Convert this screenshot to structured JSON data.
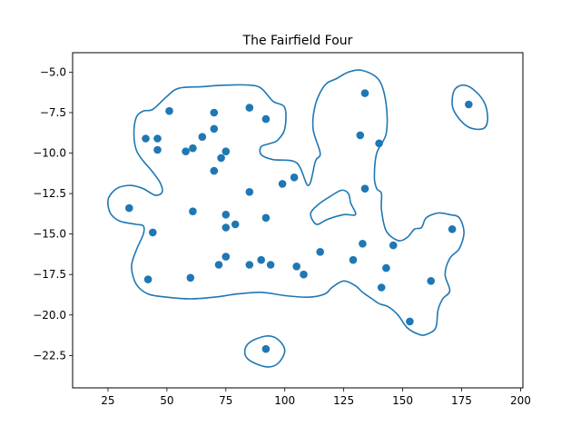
{
  "chart_data": {
    "type": "scatter",
    "title": "The Fairfield Four",
    "xlabel": "",
    "ylabel": "",
    "xlim": [
      10,
      201
    ],
    "ylim": [
      -24.5,
      -3.8
    ],
    "xticks": [
      25,
      50,
      75,
      100,
      125,
      150,
      175,
      200
    ],
    "yticks": [
      -5.0,
      -7.5,
      -10.0,
      -12.5,
      -15.0,
      -17.5,
      -20.0,
      -22.5
    ],
    "xtick_labels": [
      "25",
      "50",
      "75",
      "100",
      "125",
      "150",
      "175",
      "200"
    ],
    "ytick_labels": [
      "−5.0",
      "−7.5",
      "−10.0",
      "−12.5",
      "−15.0",
      "−17.5",
      "−20.0",
      "−22.5"
    ],
    "grid": false,
    "point_color": "#1f77b4",
    "line_color": "#1f77b4",
    "points": [
      [
        51,
        -7.4
      ],
      [
        41,
        -9.1
      ],
      [
        46,
        -9.1
      ],
      [
        46,
        -9.8
      ],
      [
        70,
        -7.5
      ],
      [
        70,
        -8.5
      ],
      [
        85,
        -7.2
      ],
      [
        92,
        -7.9
      ],
      [
        65,
        -9.0
      ],
      [
        61,
        -9.7
      ],
      [
        58,
        -9.9
      ],
      [
        75,
        -9.9
      ],
      [
        73,
        -10.3
      ],
      [
        70,
        -11.1
      ],
      [
        85,
        -12.4
      ],
      [
        99,
        -11.9
      ],
      [
        104,
        -11.5
      ],
      [
        132,
        -8.9
      ],
      [
        140,
        -9.4
      ],
      [
        134,
        -6.3
      ],
      [
        134,
        -12.2
      ],
      [
        178,
        -7.0
      ],
      [
        34,
        -13.4
      ],
      [
        61,
        -13.6
      ],
      [
        75,
        -13.8
      ],
      [
        79,
        -14.4
      ],
      [
        75,
        -14.6
      ],
      [
        92,
        -14.0
      ],
      [
        44,
        -14.9
      ],
      [
        75,
        -16.4
      ],
      [
        72,
        -16.9
      ],
      [
        85,
        -16.9
      ],
      [
        90,
        -16.6
      ],
      [
        94,
        -16.9
      ],
      [
        105,
        -17.0
      ],
      [
        108,
        -17.5
      ],
      [
        115,
        -16.1
      ],
      [
        133,
        -15.6
      ],
      [
        129,
        -16.6
      ],
      [
        146,
        -15.7
      ],
      [
        143,
        -17.1
      ],
      [
        141,
        -18.3
      ],
      [
        162,
        -17.9
      ],
      [
        171,
        -14.7
      ],
      [
        153,
        -20.4
      ],
      [
        60,
        -17.7
      ],
      [
        42,
        -17.8
      ],
      [
        92,
        -22.1
      ]
    ],
    "contours": [
      [
        [
          110,
          -12.0
        ],
        [
          113,
          -10.5
        ],
        [
          115,
          -10.0
        ],
        [
          112,
          -8.5
        ],
        [
          113,
          -7.0
        ],
        [
          117,
          -5.8
        ],
        [
          122,
          -5.4
        ],
        [
          127,
          -5.0
        ],
        [
          133,
          -4.9
        ],
        [
          140,
          -5.5
        ],
        [
          143,
          -7.0
        ],
        [
          143,
          -8.8
        ],
        [
          139,
          -10.0
        ],
        [
          138,
          -11.5
        ],
        [
          139,
          -12.2
        ],
        [
          141,
          -12.5
        ],
        [
          141,
          -13.5
        ],
        [
          143,
          -14.8
        ],
        [
          148,
          -15.4
        ],
        [
          152,
          -15.2
        ],
        [
          155,
          -14.7
        ],
        [
          158,
          -14.6
        ],
        [
          160,
          -14.0
        ],
        [
          165,
          -13.7
        ],
        [
          170,
          -13.8
        ],
        [
          174,
          -14.0
        ],
        [
          176,
          -14.9
        ],
        [
          174,
          -15.9
        ],
        [
          170,
          -16.5
        ],
        [
          168,
          -17.5
        ],
        [
          170,
          -18.5
        ],
        [
          167,
          -19.0
        ],
        [
          165,
          -19.7
        ],
        [
          164,
          -20.8
        ],
        [
          160,
          -21.2
        ],
        [
          157,
          -21.2
        ],
        [
          152,
          -20.8
        ],
        [
          148,
          -20.0
        ],
        [
          144,
          -19.5
        ],
        [
          140,
          -19.3
        ],
        [
          137,
          -19.0
        ],
        [
          133,
          -18.6
        ],
        [
          130,
          -18.2
        ],
        [
          125,
          -17.9
        ],
        [
          120,
          -18.3
        ],
        [
          117,
          -18.7
        ],
        [
          110,
          -18.9
        ],
        [
          100,
          -18.8
        ],
        [
          90,
          -18.6
        ],
        [
          80,
          -18.7
        ],
        [
          70,
          -18.9
        ],
        [
          60,
          -19.0
        ],
        [
          50,
          -18.9
        ],
        [
          42,
          -18.7
        ],
        [
          37,
          -18.1
        ],
        [
          35,
          -17.0
        ],
        [
          37,
          -16.0
        ],
        [
          40,
          -15.0
        ],
        [
          40,
          -14.5
        ],
        [
          37,
          -14.4
        ],
        [
          30,
          -14.2
        ],
        [
          26,
          -13.7
        ],
        [
          25,
          -12.9
        ],
        [
          27,
          -12.4
        ],
        [
          30,
          -12.1
        ],
        [
          35,
          -12.0
        ],
        [
          40,
          -12.2
        ],
        [
          45,
          -12.6
        ],
        [
          48,
          -12.4
        ],
        [
          47,
          -11.8
        ],
        [
          43,
          -11.0
        ],
        [
          40,
          -10.5
        ],
        [
          37,
          -9.8
        ],
        [
          36,
          -8.8
        ],
        [
          37,
          -7.8
        ],
        [
          40,
          -7.4
        ],
        [
          44,
          -7.3
        ],
        [
          50,
          -6.5
        ],
        [
          55,
          -6.0
        ],
        [
          65,
          -5.9
        ],
        [
          75,
          -5.8
        ],
        [
          85,
          -5.8
        ],
        [
          90,
          -6.0
        ],
        [
          95,
          -6.8
        ],
        [
          100,
          -7.2
        ],
        [
          100,
          -8.5
        ],
        [
          97,
          -9.2
        ],
        [
          94,
          -9.4
        ],
        [
          90,
          -9.6
        ],
        [
          90,
          -10.1
        ],
        [
          95,
          -10.4
        ],
        [
          105,
          -10.6
        ],
        [
          110,
          -12.0
        ]
      ],
      [
        [
          114,
          -14.4
        ],
        [
          118,
          -14.1
        ],
        [
          125,
          -13.8
        ],
        [
          130,
          -13.8
        ],
        [
          128,
          -13.1
        ],
        [
          127,
          -12.5
        ],
        [
          124,
          -12.3
        ],
        [
          119,
          -12.7
        ],
        [
          114,
          -13.2
        ],
        [
          111,
          -13.7
        ],
        [
          112,
          -14.2
        ],
        [
          114,
          -14.4
        ]
      ],
      [
        [
          176,
          -5.8
        ],
        [
          181,
          -6.2
        ],
        [
          185,
          -7.0
        ],
        [
          186,
          -8.0
        ],
        [
          184,
          -8.5
        ],
        [
          178,
          -8.4
        ],
        [
          173,
          -7.7
        ],
        [
          171,
          -7.0
        ],
        [
          172,
          -6.1
        ],
        [
          176,
          -5.8
        ]
      ],
      [
        [
          92,
          -21.3
        ],
        [
          97,
          -21.5
        ],
        [
          100,
          -22.2
        ],
        [
          97,
          -23.0
        ],
        [
          92,
          -23.2
        ],
        [
          85,
          -22.8
        ],
        [
          83,
          -22.3
        ],
        [
          85,
          -21.7
        ],
        [
          92,
          -21.3
        ]
      ]
    ]
  }
}
